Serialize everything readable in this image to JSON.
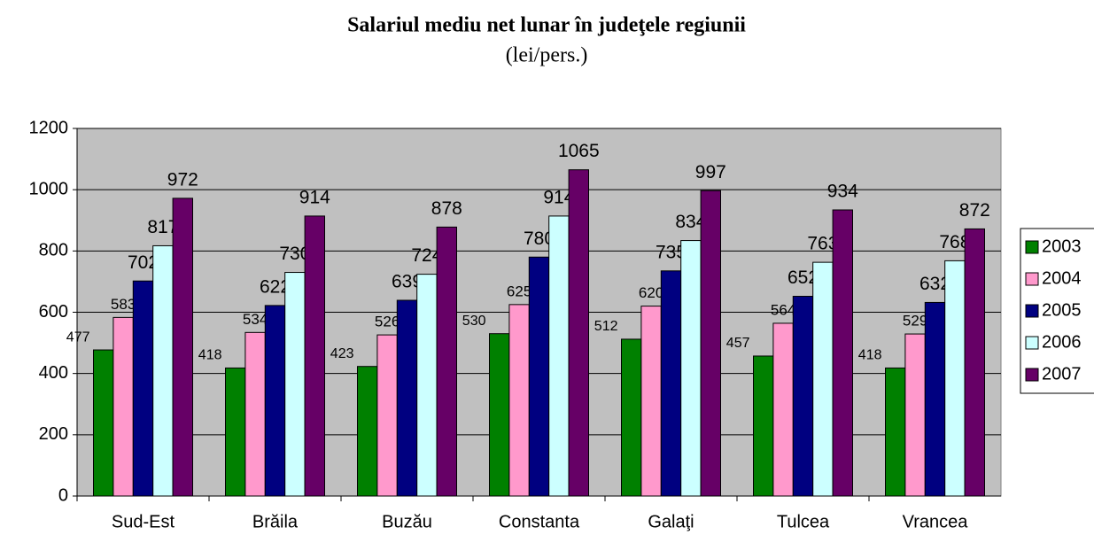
{
  "chart_data": {
    "type": "bar",
    "title": "Salariul mediu net lunar în judeţele regiunii",
    "subtitle": "(lei/pers.)",
    "categories": [
      "Sud-Est",
      "Brăila",
      "Buzău",
      "Constanta",
      "Galaţi",
      "Tulcea",
      "Vrancea"
    ],
    "series": [
      {
        "name": "2003",
        "color": "#008000",
        "values": [
          477,
          418,
          423,
          530,
          512,
          457,
          418
        ]
      },
      {
        "name": "2004",
        "color": "#ff99cc",
        "values": [
          583,
          534,
          526,
          625,
          620,
          564,
          529
        ]
      },
      {
        "name": "2005",
        "color": "#000080",
        "values": [
          702,
          622,
          639,
          780,
          735,
          652,
          632
        ]
      },
      {
        "name": "2006",
        "color": "#ccffff",
        "values": [
          817,
          730,
          724,
          914,
          834,
          763,
          768
        ]
      },
      {
        "name": "2007",
        "color": "#660066",
        "values": [
          972,
          914,
          878,
          1065,
          997,
          934,
          872
        ]
      }
    ],
    "ylim": [
      0,
      1200
    ],
    "yticks": [
      0,
      200,
      400,
      600,
      800,
      1000,
      1200
    ],
    "grid": true,
    "legend": "right"
  }
}
